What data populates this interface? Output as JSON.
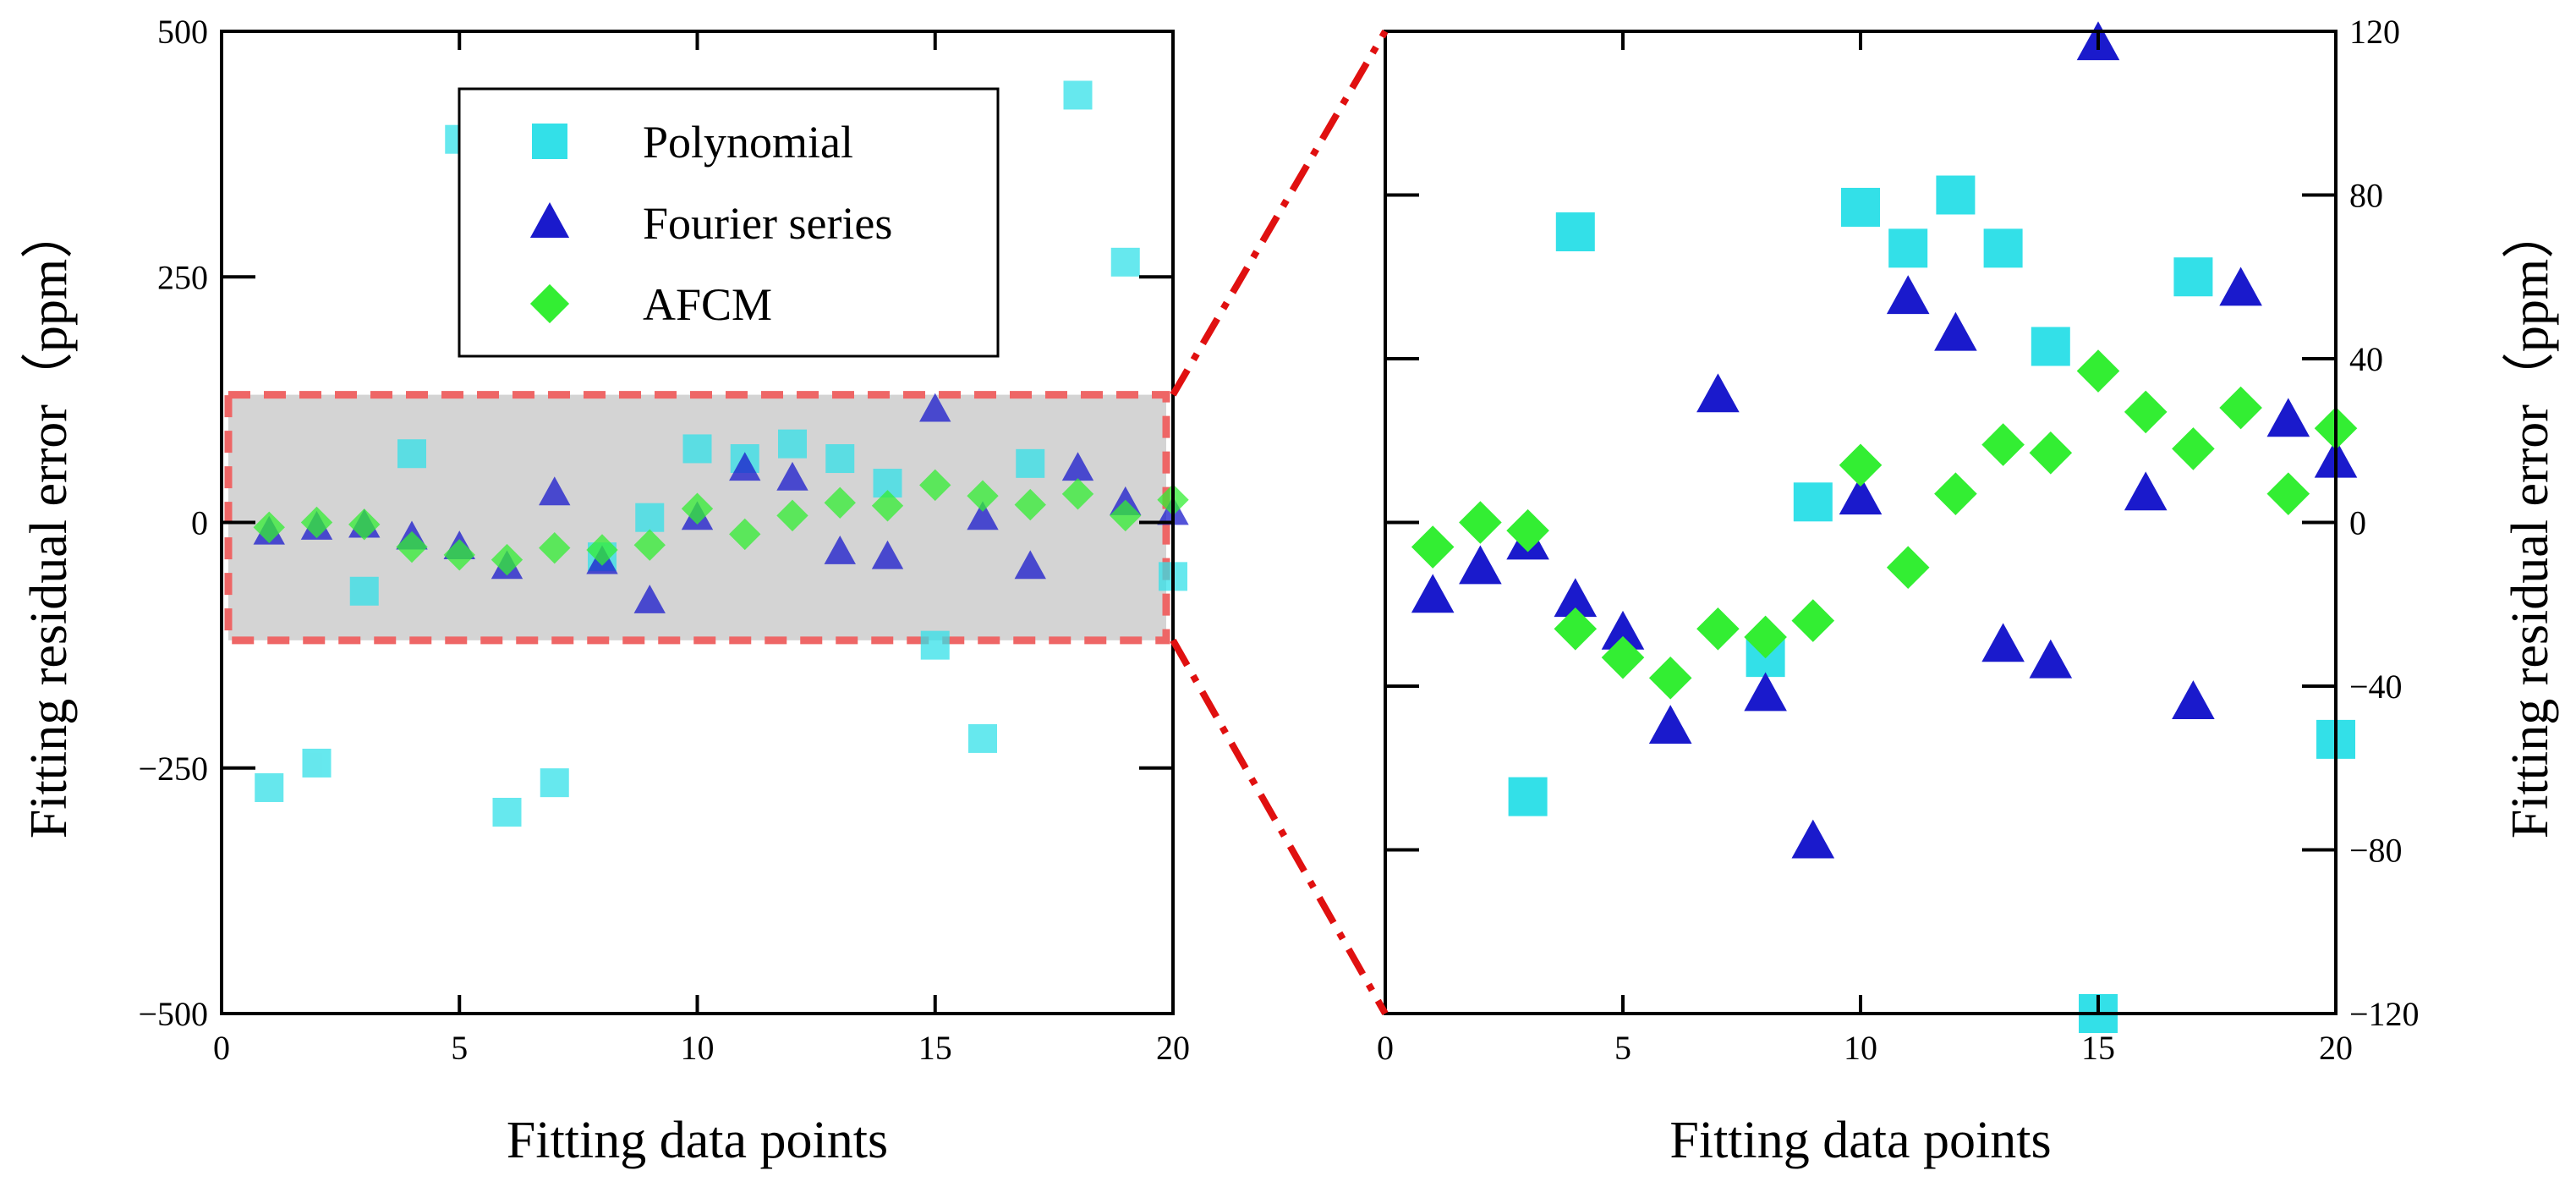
{
  "chart_data": [
    {
      "type": "scatter",
      "panel": "left",
      "title": "",
      "xlabel": "Fitting data points",
      "ylabel": "Fitting residual error（ppm）",
      "xlim": [
        0,
        20
      ],
      "ylim": [
        -500,
        500
      ],
      "xticks": [
        0,
        5,
        10,
        15,
        20
      ],
      "yticks": [
        -500,
        -250,
        0,
        250,
        500
      ],
      "xtick_labels": [
        "0",
        "5",
        "10",
        "15",
        "20"
      ],
      "ytick_labels": [
        "−500",
        "−250",
        "0",
        "250",
        "500"
      ],
      "legend_position": "top-center",
      "highlight_band": [
        -120,
        130
      ],
      "series": [
        {
          "name": "Polynomial",
          "marker": "square",
          "color": "#33e0e8",
          "x": [
            1,
            2,
            3,
            4,
            5,
            6,
            7,
            8,
            9,
            10,
            11,
            12,
            13,
            14,
            15,
            16,
            17,
            18,
            19,
            20
          ],
          "y": [
            -270,
            -245,
            -70,
            70,
            390,
            -295,
            -265,
            -35,
            5,
            75,
            65,
            80,
            65,
            40,
            -125,
            -220,
            60,
            435,
            265,
            -55
          ]
        },
        {
          "name": "Fourier series",
          "marker": "triangle",
          "color": "#1a1acc",
          "x": [
            1,
            2,
            3,
            4,
            5,
            6,
            7,
            8,
            9,
            10,
            11,
            12,
            13,
            14,
            15,
            16,
            17,
            18,
            19,
            20
          ],
          "y": [
            -10,
            -5,
            -3,
            -15,
            -25,
            -45,
            30,
            -40,
            -80,
            5,
            55,
            45,
            -30,
            -35,
            115,
            5,
            -45,
            55,
            20,
            10
          ]
        },
        {
          "name": "AFCM",
          "marker": "diamond",
          "color": "#33ee33",
          "x": [
            1,
            2,
            3,
            4,
            5,
            6,
            7,
            8,
            9,
            10,
            11,
            12,
            13,
            14,
            15,
            16,
            17,
            18,
            19,
            20
          ],
          "y": [
            -5,
            0,
            -2,
            -25,
            -33,
            -38,
            -26,
            -28,
            -23,
            14,
            -12,
            7,
            20,
            17,
            38,
            27,
            18,
            29,
            7,
            23
          ]
        }
      ]
    },
    {
      "type": "scatter",
      "panel": "right",
      "title": "",
      "xlabel": "Fitting data points",
      "ylabel": "Fitting residual error（ppm）",
      "xlim": [
        0,
        20
      ],
      "ylim": [
        -120,
        120
      ],
      "xticks": [
        0,
        5,
        10,
        15,
        20
      ],
      "yticks": [
        -120,
        -80,
        -40,
        0,
        40,
        80,
        120
      ],
      "xtick_labels": [
        "0",
        "5",
        "10",
        "15",
        "20"
      ],
      "ytick_labels": [
        "−120",
        "−80",
        "−40",
        "0",
        "40",
        "80",
        "120"
      ],
      "series": [
        {
          "name": "Polynomial",
          "marker": "square",
          "color": "#33e0e8",
          "x": [
            3,
            4,
            8,
            9,
            10,
            11,
            12,
            13,
            14,
            15,
            17,
            20
          ],
          "y": [
            -67,
            71,
            -33,
            5,
            77,
            67,
            80,
            67,
            43,
            -120,
            60,
            -53
          ]
        },
        {
          "name": "Fourier series",
          "marker": "triangle",
          "color": "#1a1acc",
          "x": [
            1,
            2,
            3,
            4,
            5,
            6,
            7,
            8,
            9,
            10,
            11,
            12,
            13,
            14,
            15,
            16,
            17,
            18,
            19,
            20
          ],
          "y": [
            -18,
            -11,
            -5,
            -19,
            -27,
            -50,
            31,
            -42,
            -78,
            6,
            55,
            46,
            -30,
            -34,
            117,
            7,
            -44,
            57,
            25,
            15
          ]
        },
        {
          "name": "AFCM",
          "marker": "diamond",
          "color": "#33ee33",
          "x": [
            1,
            2,
            3,
            4,
            5,
            6,
            7,
            8,
            9,
            10,
            11,
            12,
            13,
            14,
            15,
            16,
            17,
            18,
            19,
            20
          ],
          "y": [
            -6,
            0,
            -2,
            -26,
            -33,
            -38,
            -26,
            -28,
            -24,
            14,
            -11,
            7,
            19,
            17,
            37,
            27,
            18,
            28,
            7,
            23
          ]
        }
      ]
    }
  ]
}
